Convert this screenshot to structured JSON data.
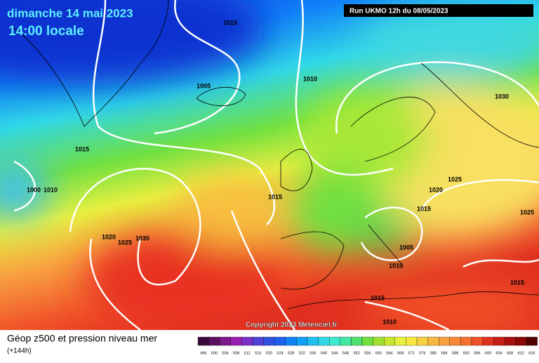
{
  "header": {
    "title": "dimanche 14 mai 2023",
    "time": "14:00 locale",
    "run": "Run UKMO 12h du 08/05/2023"
  },
  "isobars": [
    1015,
    1005,
    1010,
    1030,
    1015,
    1000,
    1010,
    1015,
    1020,
    1025,
    1015,
    1025,
    1020,
    1025,
    1030,
    1005,
    1010,
    1015,
    1015,
    1010
  ],
  "copyright": "Copyright 2023 Meteociel.fr",
  "legend": {
    "title": "Géop z500 et pression niveau mer",
    "lead": "(+144h)",
    "labels": [
      496,
      500,
      504,
      508,
      512,
      516,
      520,
      524,
      528,
      532,
      536,
      540,
      544,
      548,
      552,
      556,
      560,
      564,
      568,
      572,
      576,
      580,
      584,
      588,
      592,
      596,
      600,
      604,
      608,
      612,
      616
    ],
    "colors": [
      "#3a0a3a",
      "#5a1060",
      "#7a1a8a",
      "#9a20b0",
      "#7a30c8",
      "#5040d8",
      "#3050e0",
      "#2060f0",
      "#1080f8",
      "#10a0f8",
      "#20c0f0",
      "#30d8e8",
      "#40e8d0",
      "#40e8a0",
      "#50e070",
      "#70e040",
      "#a0e030",
      "#c8e830",
      "#e8f040",
      "#f8e840",
      "#f8d040",
      "#f8b840",
      "#f8a040",
      "#f88838",
      "#f87030",
      "#f05028",
      "#e03020",
      "#c82018",
      "#a81010",
      "#880808",
      "#500000"
    ]
  }
}
